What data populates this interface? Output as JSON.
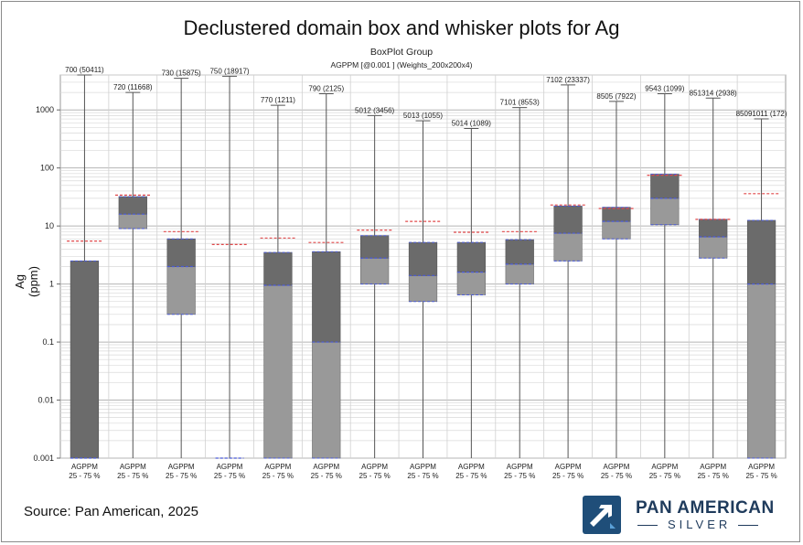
{
  "title": "Declustered domain box and whisker plots for Ag",
  "subtitle": "BoxPlot Group",
  "subtitle2": "AGPPM [@0.001 ] (Weights_200x200x4)",
  "source": "Source: Pan American, 2025",
  "logo": {
    "line1": "PAN AMERICAN",
    "line2": "SILVER",
    "icon": "pan-american-arrow-icon"
  },
  "colors": {
    "upper_box": "#6b6b6b",
    "lower_box": "#999999",
    "mean": "#e0484a",
    "median": "#4a5ad8",
    "whisker": "#555555"
  },
  "chart_data": {
    "type": "box",
    "ylabel": "Ag (ppm)",
    "yscale": "log",
    "ylim": [
      0.001,
      4000
    ],
    "yticks": [
      {
        "v": 0.001,
        "label": "0.001"
      },
      {
        "v": 0.01,
        "label": "0.01"
      },
      {
        "v": 0.1,
        "label": "0.1"
      },
      {
        "v": 1,
        "label": "1"
      },
      {
        "v": 10,
        "label": "10"
      },
      {
        "v": 100,
        "label": "100"
      },
      {
        "v": 1000,
        "label": "1000"
      }
    ],
    "grid": true,
    "boxes": [
      {
        "label": "700 (50411)",
        "cat": "AGPPM",
        "cat2": "25 - 75 %",
        "max": 4000,
        "q3": 2.5,
        "median": 0.001,
        "q1": 0.001,
        "min": 0.001,
        "mean": 5.5
      },
      {
        "label": "720 (11668)",
        "cat": "AGPPM",
        "cat2": "25 - 75 %",
        "max": 2000,
        "q3": 32,
        "median": 16,
        "q1": 9,
        "min": 0.001,
        "mean": 34
      },
      {
        "label": "730 (15875)",
        "cat": "AGPPM",
        "cat2": "25 - 75 %",
        "max": 3500,
        "q3": 6,
        "median": 2,
        "q1": 0.3,
        "min": 0.001,
        "mean": 8
      },
      {
        "label": "750 (18917)",
        "cat": "AGPPM",
        "cat2": "25 - 75 %",
        "max": 3800,
        "q3": 0.001,
        "median": 0.001,
        "q1": 0.001,
        "min": 0.001,
        "mean": 4.8
      },
      {
        "label": "770 (1211)",
        "cat": "AGPPM",
        "cat2": "25 - 75 %",
        "max": 1200,
        "q3": 3.5,
        "median": 0.95,
        "q1": 0.001,
        "min": 0.001,
        "mean": 6.2
      },
      {
        "label": "790 (2125)",
        "cat": "AGPPM",
        "cat2": "25 - 75 %",
        "max": 1900,
        "q3": 3.6,
        "median": 0.1,
        "q1": 0.001,
        "min": 0.001,
        "mean": 5.2
      },
      {
        "label": "5012 (3456)",
        "cat": "AGPPM",
        "cat2": "25 - 75 %",
        "max": 800,
        "q3": 6.8,
        "median": 2.8,
        "q1": 1,
        "min": 0.001,
        "mean": 8.5
      },
      {
        "label": "5013 (1055)",
        "cat": "AGPPM",
        "cat2": "25 - 75 %",
        "max": 650,
        "q3": 5.2,
        "median": 1.4,
        "q1": 0.5,
        "min": 0.001,
        "mean": 12
      },
      {
        "label": "5014 (1089)",
        "cat": "AGPPM",
        "cat2": "25 - 75 %",
        "max": 480,
        "q3": 5.2,
        "median": 1.6,
        "q1": 0.65,
        "min": 0.001,
        "mean": 7.8
      },
      {
        "label": "7101 (8553)",
        "cat": "AGPPM",
        "cat2": "25 - 75 %",
        "max": 1100,
        "q3": 5.8,
        "median": 2.2,
        "q1": 1,
        "min": 0.001,
        "mean": 8
      },
      {
        "label": "7102 (23337)",
        "cat": "AGPPM",
        "cat2": "25 - 75 %",
        "max": 2700,
        "q3": 22,
        "median": 7.5,
        "q1": 2.5,
        "min": 0.001,
        "mean": 23
      },
      {
        "label": "8505 (7922)",
        "cat": "AGPPM",
        "cat2": "25 - 75 %",
        "max": 1400,
        "q3": 21,
        "median": 12,
        "q1": 6,
        "min": 0.001,
        "mean": 20
      },
      {
        "label": "9543 (1099)",
        "cat": "AGPPM",
        "cat2": "25 - 75 %",
        "max": 1900,
        "q3": 78,
        "median": 30,
        "q1": 10.5,
        "min": 0.001,
        "mean": 75
      },
      {
        "label": "851314 (2938)",
        "cat": "AGPPM",
        "cat2": "25 - 75 %",
        "max": 1600,
        "q3": 13,
        "median": 6.5,
        "q1": 2.8,
        "min": 0.001,
        "mean": 13
      },
      {
        "label": "85091011 (172)",
        "cat": "AGPPM",
        "cat2": "25 - 75 %",
        "max": 700,
        "q3": 12.5,
        "median": 1,
        "q1": 0.001,
        "min": 0.001,
        "mean": 36
      }
    ]
  }
}
